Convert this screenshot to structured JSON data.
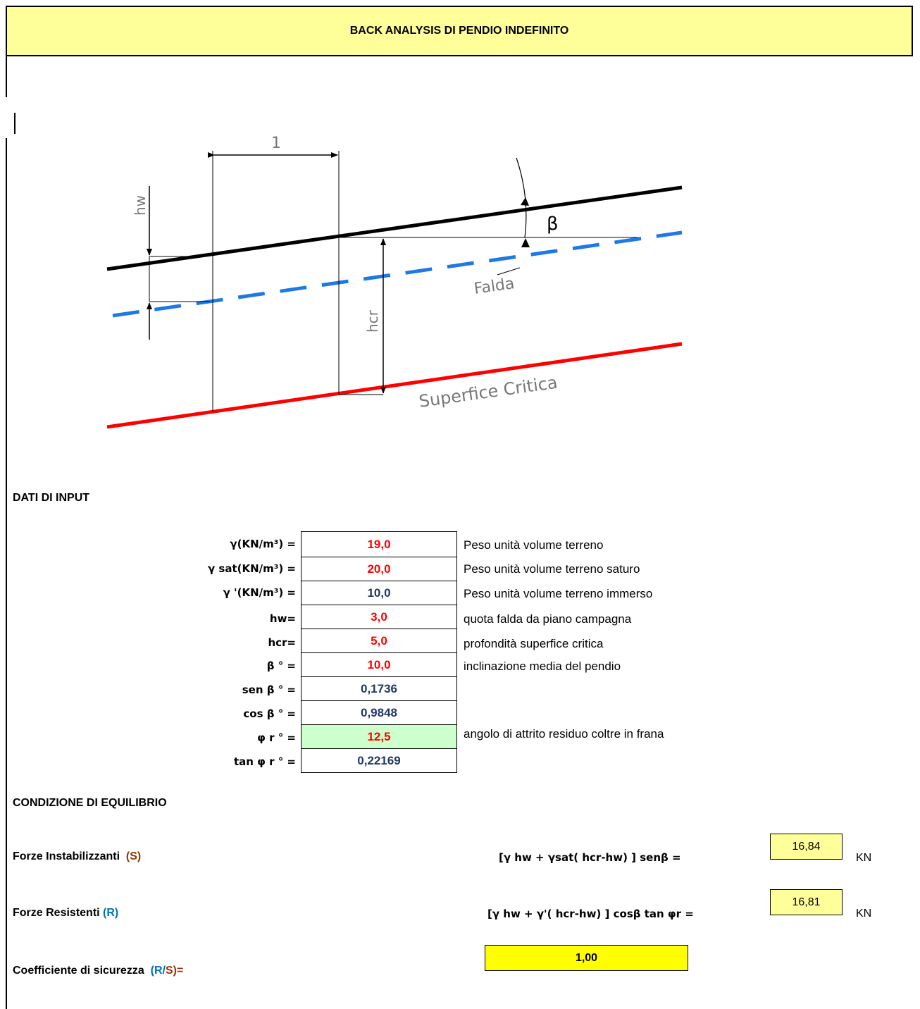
{
  "title": "BACK ANALYSIS  DI PENDIO INDEFINITO",
  "diagram": {
    "dim_label": "1",
    "hw_label": "hw",
    "beta_label": "β",
    "falda_label": "Falda",
    "hcr_label": "hcr",
    "critical_label": "Superfice  Critica"
  },
  "input": {
    "heading": "DATI DI INPUT",
    "rows": [
      {
        "label": "γ(KN/m³) =",
        "value": "19,0",
        "desc": "Peso unità volume terreno"
      },
      {
        "label": "γ sat(KN/m³) =",
        "value": "20,0",
        "desc": "Peso unità volume terreno saturo"
      },
      {
        "label": "γ '(KN/m³) =",
        "value": "10,0",
        "desc": "Peso unità volume terreno immerso"
      },
      {
        "label": "hw=",
        "value": "3,0",
        "desc": "quota falda da piano campagna"
      },
      {
        "label": "hcr=",
        "value": "5,0",
        "desc": "profondità superfice critica"
      },
      {
        "label": "β ° =",
        "value": "10,0",
        "desc": "inclinazione media del pendio"
      },
      {
        "label": "sen β ° =",
        "value": "0,1736",
        "desc": ""
      },
      {
        "label": "cos β ° =",
        "value": "0,9848",
        "desc": ""
      },
      {
        "label": "φ r ° =",
        "value": "12,5",
        "desc": "angolo di attrito residuo coltre in frana"
      },
      {
        "label": "tan φ r ° =",
        "value": "0,22169",
        "desc": ""
      }
    ]
  },
  "equilibrium": {
    "heading": "CONDIZIONE DI EQUILIBRIO",
    "forze_inst_label": "Forze Instabilizzanti",
    "forze_inst_tag": "(S)",
    "forze_inst_formula": "[γ hw +  γsat( hcr-hw) ] senβ =",
    "forze_inst_value": "16,84",
    "forze_res_label": "Forze Resistenti",
    "forze_res_tag": "(R)",
    "forze_res_formula": "[γ hw +  γ'( hcr-hw) ] cosβ tan φr  =",
    "forze_res_value": "16,81",
    "unit": "KN",
    "coeff_label": "Coefficiente di sicurezza",
    "coeff_tag_open": "(",
    "coeff_tag_r": "R",
    "coeff_tag_slash": "/",
    "coeff_tag_s": "S",
    "coeff_tag_close": ")=",
    "coeff_value": "1,00"
  },
  "colors": {
    "title_bg": "#ffff99",
    "red_value": "#ff0000",
    "blue_value": "#1f3864",
    "green_cell": "#ccffcc",
    "coeff_bg": "#ffff00",
    "water_line": "#1e78e6",
    "critical_line": "#ff0000"
  }
}
